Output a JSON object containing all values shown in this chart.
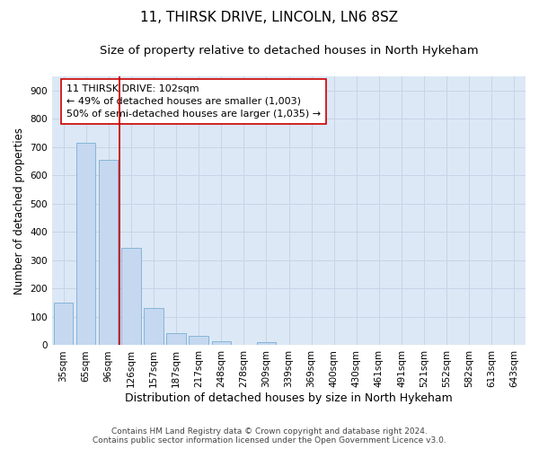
{
  "title1": "11, THIRSK DRIVE, LINCOLN, LN6 8SZ",
  "title2": "Size of property relative to detached houses in North Hykeham",
  "xlabel": "Distribution of detached houses by size in North Hykeham",
  "ylabel": "Number of detached properties",
  "categories": [
    "35sqm",
    "65sqm",
    "96sqm",
    "126sqm",
    "157sqm",
    "187sqm",
    "217sqm",
    "248sqm",
    "278sqm",
    "309sqm",
    "339sqm",
    "369sqm",
    "400sqm",
    "430sqm",
    "461sqm",
    "491sqm",
    "521sqm",
    "552sqm",
    "582sqm",
    "613sqm",
    "643sqm"
  ],
  "values": [
    150,
    715,
    655,
    343,
    130,
    42,
    33,
    13,
    0,
    10,
    0,
    0,
    0,
    0,
    0,
    0,
    0,
    0,
    0,
    0,
    0
  ],
  "bar_color": "#c5d8f0",
  "bar_edge_color": "#7aadd4",
  "vline_color": "#cc0000",
  "annotation_line1": "11 THIRSK DRIVE: 102sqm",
  "annotation_line2": "← 49% of detached houses are smaller (1,003)",
  "annotation_line3": "50% of semi-detached houses are larger (1,035) →",
  "annotation_box_color": "#ffffff",
  "annotation_box_edge": "#cc0000",
  "ylim": [
    0,
    950
  ],
  "yticks": [
    0,
    100,
    200,
    300,
    400,
    500,
    600,
    700,
    800,
    900
  ],
  "grid_color": "#c8d4e8",
  "bg_color": "#dce8f5",
  "footer1": "Contains HM Land Registry data © Crown copyright and database right 2024.",
  "footer2": "Contains public sector information licensed under the Open Government Licence v3.0.",
  "title1_fontsize": 11,
  "title2_fontsize": 9.5,
  "xlabel_fontsize": 9,
  "ylabel_fontsize": 8.5,
  "tick_fontsize": 7.5,
  "annot_fontsize": 8,
  "footer_fontsize": 6.5
}
